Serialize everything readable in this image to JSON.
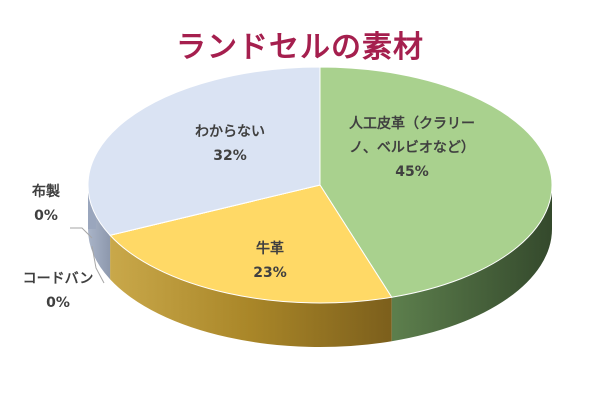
{
  "chart_data": {
    "type": "pie",
    "title": "ランドセルの素材",
    "slices": [
      {
        "name": "人工皮革（クラリーノ、ベルビオなど）",
        "name_lines": [
          "人工皮革（クラリー",
          "ノ、ベルビオなど）"
        ],
        "value": 45,
        "value_label": "45%",
        "color": "#a9d18e",
        "side_color": "#3f5a37"
      },
      {
        "name": "牛革",
        "name_lines": [
          "牛革"
        ],
        "value": 23,
        "value_label": "23%",
        "color": "#ffd966",
        "side_color": "#b8922e"
      },
      {
        "name": "コードバン",
        "name_lines": [
          "コードバン"
        ],
        "value": 0,
        "value_label": "0%",
        "color": "#c9c9c9",
        "side_color": "#9a9a9a"
      },
      {
        "name": "布製",
        "name_lines": [
          "布製"
        ],
        "value": 0,
        "value_label": "0%",
        "color": "#ffffff",
        "side_color": "#b0b0b0"
      },
      {
        "name": "わからない",
        "name_lines": [
          "わからない"
        ],
        "value": 32,
        "value_label": "32%",
        "color": "#dae3f3",
        "side_color": "#9aa6bd"
      }
    ],
    "legend": "none",
    "style": "3d-pie"
  }
}
